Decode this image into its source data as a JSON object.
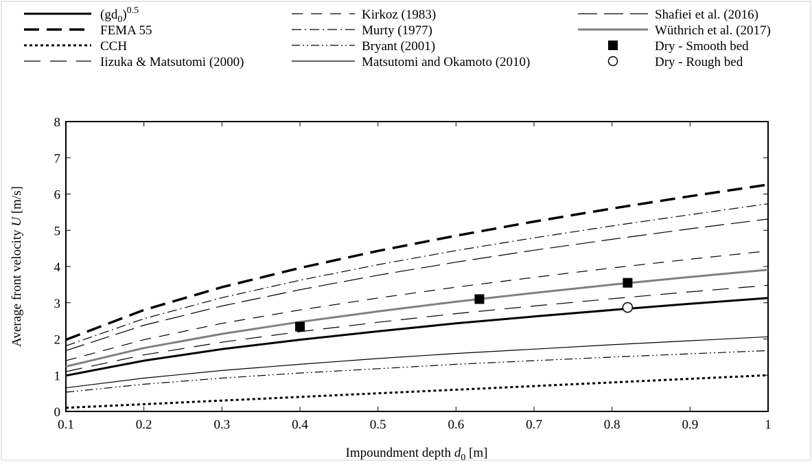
{
  "chart_data": {
    "type": "line",
    "xlabel": "Impoundment depth d0 [m]",
    "ylabel": "Average front velocity U [m/s]",
    "xlim": [
      0.1,
      1.0
    ],
    "ylim": [
      0,
      8
    ],
    "xticks": [
      0.1,
      0.2,
      0.3,
      0.4,
      0.5,
      0.6,
      0.7,
      0.8,
      0.9,
      1
    ],
    "yticks": [
      0,
      1,
      2,
      3,
      4,
      5,
      6,
      7,
      8
    ],
    "x": [
      0.1,
      0.2,
      0.3,
      0.4,
      0.5,
      0.6,
      0.7,
      0.8,
      0.9,
      1.0
    ],
    "grid": false,
    "legend_position": "top",
    "series": [
      {
        "name": "(gd0)^0.5",
        "legend_base": "(gd",
        "legend_sub": "0",
        "legend_tail": ")",
        "legend_sup": "0.5",
        "style": "solid-thick",
        "color": "#000000",
        "values": [
          0.99,
          1.4,
          1.72,
          1.98,
          2.21,
          2.43,
          2.62,
          2.8,
          2.97,
          3.13
        ]
      },
      {
        "name": "FEMA 55",
        "style": "longdash-thick",
        "color": "#000000",
        "values": [
          1.98,
          2.8,
          3.43,
          3.96,
          4.43,
          4.85,
          5.24,
          5.6,
          5.94,
          6.26
        ]
      },
      {
        "name": "CCH",
        "style": "dot-thick",
        "color": "#000000",
        "values": [
          0.1,
          0.2,
          0.3,
          0.4,
          0.5,
          0.6,
          0.7,
          0.8,
          0.9,
          1.0
        ]
      },
      {
        "name": "Iizuka & Matsutomi (2000)",
        "style": "dash-long-thin",
        "color": "#000000",
        "values": [
          1.1,
          1.56,
          1.91,
          2.2,
          2.46,
          2.7,
          2.91,
          3.11,
          3.3,
          3.48
        ]
      },
      {
        "name": "Kirkoz (1983)",
        "style": "dash-thin",
        "color": "#000000",
        "values": [
          1.4,
          1.98,
          2.43,
          2.8,
          3.13,
          3.43,
          3.7,
          3.96,
          4.2,
          4.43
        ]
      },
      {
        "name": "Murty (1977)",
        "style": "dashdot-thin",
        "color": "#000000",
        "values": [
          1.81,
          2.56,
          3.14,
          3.62,
          4.05,
          4.44,
          4.79,
          5.12,
          5.43,
          5.73
        ]
      },
      {
        "name": "Bryant (2001)",
        "style": "dashdotdot-thin",
        "color": "#000000",
        "values": [
          0.53,
          0.75,
          0.92,
          1.06,
          1.18,
          1.3,
          1.4,
          1.5,
          1.59,
          1.68
        ]
      },
      {
        "name": "Matsutomi and Okamoto (2010)",
        "style": "solid-thin",
        "color": "#000000",
        "values": [
          0.65,
          0.92,
          1.13,
          1.3,
          1.46,
          1.6,
          1.72,
          1.84,
          1.95,
          2.06
        ]
      },
      {
        "name": "Shafiei et al. (2016)",
        "style": "dash-medium-thin",
        "color": "#000000",
        "values": [
          1.68,
          2.38,
          2.91,
          3.36,
          3.76,
          4.12,
          4.45,
          4.75,
          5.04,
          5.31
        ]
      },
      {
        "name": "Wüthrich et al. (2017)",
        "style": "solid-gray",
        "color": "#808080",
        "values": [
          1.24,
          1.75,
          2.14,
          2.47,
          2.76,
          3.03,
          3.27,
          3.5,
          3.71,
          3.91
        ]
      }
    ],
    "markers": [
      {
        "name": "Dry - Smooth bed",
        "shape": "filled-square",
        "points": [
          [
            0.4,
            2.34
          ],
          [
            0.63,
            3.1
          ],
          [
            0.82,
            3.55
          ]
        ]
      },
      {
        "name": "Dry - Rough bed",
        "shape": "open-circle",
        "points": [
          [
            0.82,
            2.87
          ]
        ]
      }
    ]
  }
}
